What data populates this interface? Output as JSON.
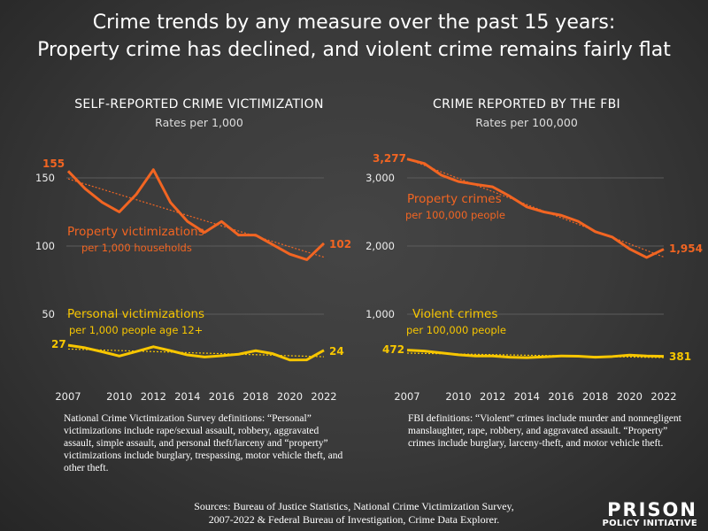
{
  "title_line1": "Crime trends by any measure over the past 15 years:",
  "title_line2": "Property crime has declined, and violent crime remains fairly flat",
  "colors": {
    "property": "#f26522",
    "violent": "#f7c600",
    "background": "#3a3a3a"
  },
  "chart_data": [
    {
      "type": "line",
      "title": "SELF-REPORTED CRIME VICTIMIZATION",
      "subtitle": "Rates per 1,000",
      "x": [
        2007,
        2008,
        2009,
        2010,
        2011,
        2012,
        2013,
        2014,
        2015,
        2016,
        2017,
        2018,
        2019,
        2020,
        2021,
        2022
      ],
      "x_ticks": [
        "2007",
        "2010",
        "2012",
        "2014",
        "2016",
        "2018",
        "2020",
        "2022"
      ],
      "y_ticks": [
        "50",
        "100",
        "150"
      ],
      "ylim": [
        0,
        160
      ],
      "grid": true,
      "trendlines": true,
      "series": [
        {
          "name": "Property victimizations",
          "unit": "per 1,000 households",
          "start_label": "155",
          "end_label": "102",
          "values": [
            155,
            142,
            132,
            125,
            138,
            156,
            132,
            118,
            110,
            118,
            108,
            108,
            101,
            94,
            90,
            102
          ]
        },
        {
          "name": "Personal victimizations",
          "unit": "per 1,000 people age 12+",
          "start_label": "27",
          "end_label": "24",
          "values": [
            27.2,
            25.3,
            22.4,
            19.3,
            22.6,
            26.1,
            23.2,
            20.1,
            18.6,
            19.5,
            20.6,
            23.2,
            21.0,
            16.4,
            16.5,
            23.5
          ]
        }
      ],
      "note": "National Crime Victimization Survey definitions: “Personal” victimizations include rape/sexual assault, robbery, aggravated assault, simple assault, and personal theft/larceny and “property” victimizations include burglary, trespassing, motor vehicle theft, and other theft."
    },
    {
      "type": "line",
      "title": "CRIME REPORTED BY THE FBI",
      "subtitle": "Rates per 100,000",
      "x": [
        2007,
        2008,
        2009,
        2010,
        2011,
        2012,
        2013,
        2014,
        2015,
        2016,
        2017,
        2018,
        2019,
        2020,
        2021,
        2022
      ],
      "x_ticks": [
        "2007",
        "2010",
        "2012",
        "2014",
        "2016",
        "2018",
        "2020",
        "2022"
      ],
      "y_ticks": [
        "1,000",
        "2,000",
        "3,000"
      ],
      "ylim": [
        0,
        3300
      ],
      "grid": true,
      "trendlines": true,
      "series": [
        {
          "name": "Property crimes",
          "unit": "per 100,000 people",
          "start_label": "3,277",
          "end_label": "1,954",
          "values": [
            3277,
            3212,
            3041,
            2946,
            2905,
            2868,
            2731,
            2574,
            2500,
            2451,
            2362,
            2210,
            2130,
            1958,
            1832,
            1954
          ]
        },
        {
          "name": "Violent crimes",
          "unit": "per 100,000 people",
          "start_label": "472",
          "end_label": "381",
          "values": [
            472,
            459,
            432,
            404,
            387,
            387,
            369,
            362,
            373,
            386,
            383,
            369,
            379,
            399,
            387,
            381
          ]
        }
      ],
      "note": "FBI definitions: “Violent” crimes include murder and nonnegligent manslaughter, rape, robbery, and aggravated assault. “Property” crimes include burglary, larceny-theft, and motor vehicle theft."
    }
  ],
  "sources_line1": "Sources: Bureau of Justice Statistics, National Crime Victimization Survey,",
  "sources_line2": "2007-2022 & Federal Bureau of Investigation, Crime Data Explorer.",
  "logo": {
    "line1": "PRISON",
    "line2": "POLICY INITIATIVE"
  }
}
